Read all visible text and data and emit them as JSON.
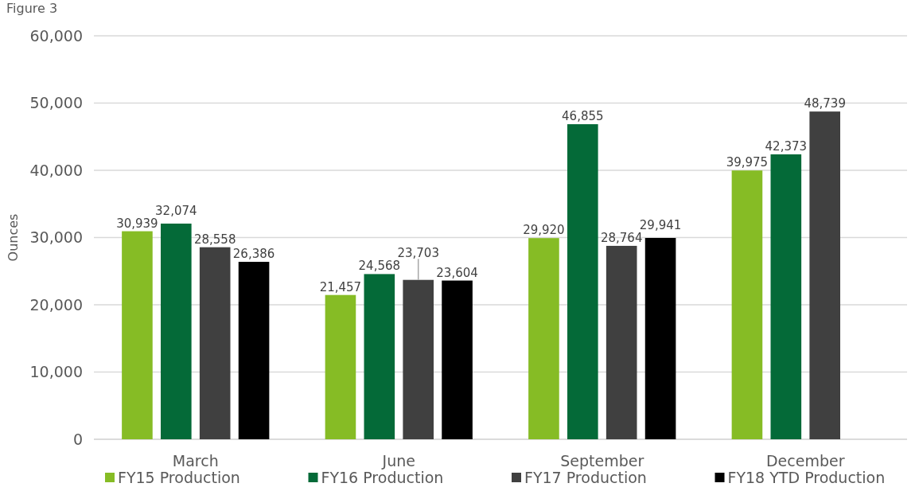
{
  "chart_data": {
    "type": "bar",
    "title": "Figure 3",
    "ylabel": "Ounces",
    "categories": [
      "March",
      "June",
      "September",
      "December"
    ],
    "series": [
      {
        "name": "FY15 Production",
        "color": "#86bc25",
        "values": [
          30939,
          21457,
          29920,
          39975
        ],
        "value_labels": [
          "30,939",
          "21,457",
          "29,920",
          "39,975"
        ]
      },
      {
        "name": "FY16 Production",
        "color": "#046a38",
        "values": [
          32074,
          24568,
          46855,
          42373
        ],
        "value_labels": [
          "32,074",
          "24,568",
          "46,855",
          "42,373"
        ]
      },
      {
        "name": "FY17 Production",
        "color": "#404040",
        "values": [
          28558,
          23703,
          28764,
          48739
        ],
        "value_labels": [
          "28,558",
          "23,703",
          "28,764",
          "48,739"
        ]
      },
      {
        "name": "FY18 YTD Production",
        "color": "#000000",
        "values": [
          26386,
          23604,
          29941,
          null
        ],
        "value_labels": [
          "26,386",
          "23,604",
          "29,941",
          null
        ]
      }
    ],
    "ylim": [
      0,
      60000
    ],
    "yticks": [
      0,
      {
        "value": 10000,
        "label": "10,000"
      },
      {
        "value": 20000,
        "label": "20,000"
      },
      {
        "value": 30000,
        "label": "30,000"
      },
      {
        "value": 40000,
        "label": "40,000"
      },
      {
        "value": 50000,
        "label": "50,000"
      },
      {
        "value": 60000,
        "label": "60,000"
      }
    ],
    "grid": "y",
    "legend": "bottom"
  }
}
